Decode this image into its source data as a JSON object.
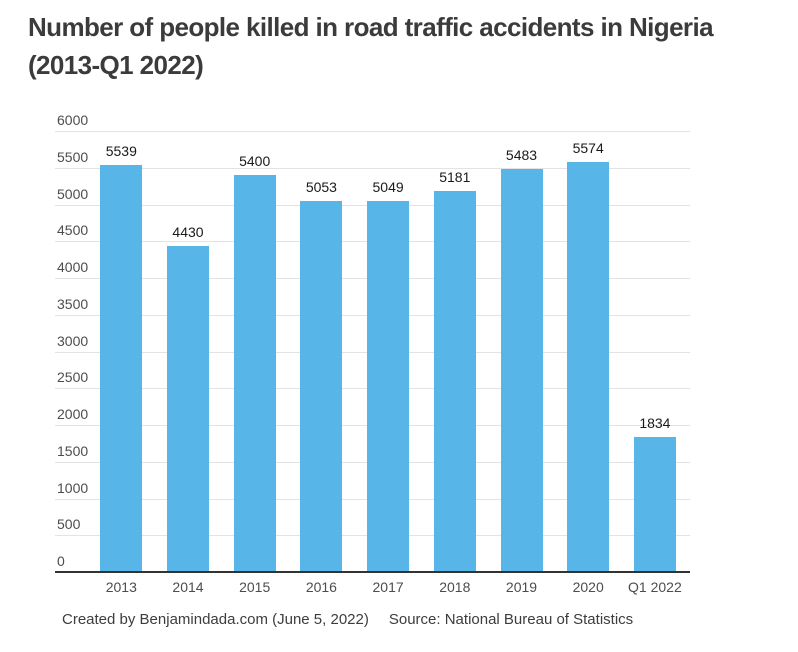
{
  "header": {
    "title_line1": "Number of people killed in road traffic accidents in Nigeria",
    "title_line2": "(2013-Q1 2022)"
  },
  "footer": {
    "credit": "Created by Benjamindada.com (June 5, 2022)",
    "source": "Source: National Bureau of Statistics"
  },
  "chart_data": {
    "type": "bar",
    "title": "Number of people killed in road traffic accidents in Nigeria (2013-Q1 2022)",
    "categories": [
      "2013",
      "2014",
      "2015",
      "2016",
      "2017",
      "2018",
      "2019",
      "2020",
      "Q1 2022"
    ],
    "values": [
      5539,
      4430,
      5400,
      5053,
      5049,
      5181,
      5483,
      5574,
      1834
    ],
    "xlabel": "",
    "ylabel": "",
    "ylim": [
      0,
      6000
    ],
    "ytick_step": 500,
    "ytick_labels": [
      "0",
      "500",
      "1000",
      "1500",
      "2000",
      "2500",
      "3000",
      "3500",
      "4000",
      "4500",
      "5000",
      "5500",
      "6000"
    ],
    "grid": "horizontal",
    "legend": "none",
    "bar_color": "#58B5E8",
    "gridline_color": "#e3e3e3",
    "axis_line_color": "#333333",
    "value_label_color": "#1a1a1a",
    "tick_label_color": "#4d4d4d"
  }
}
